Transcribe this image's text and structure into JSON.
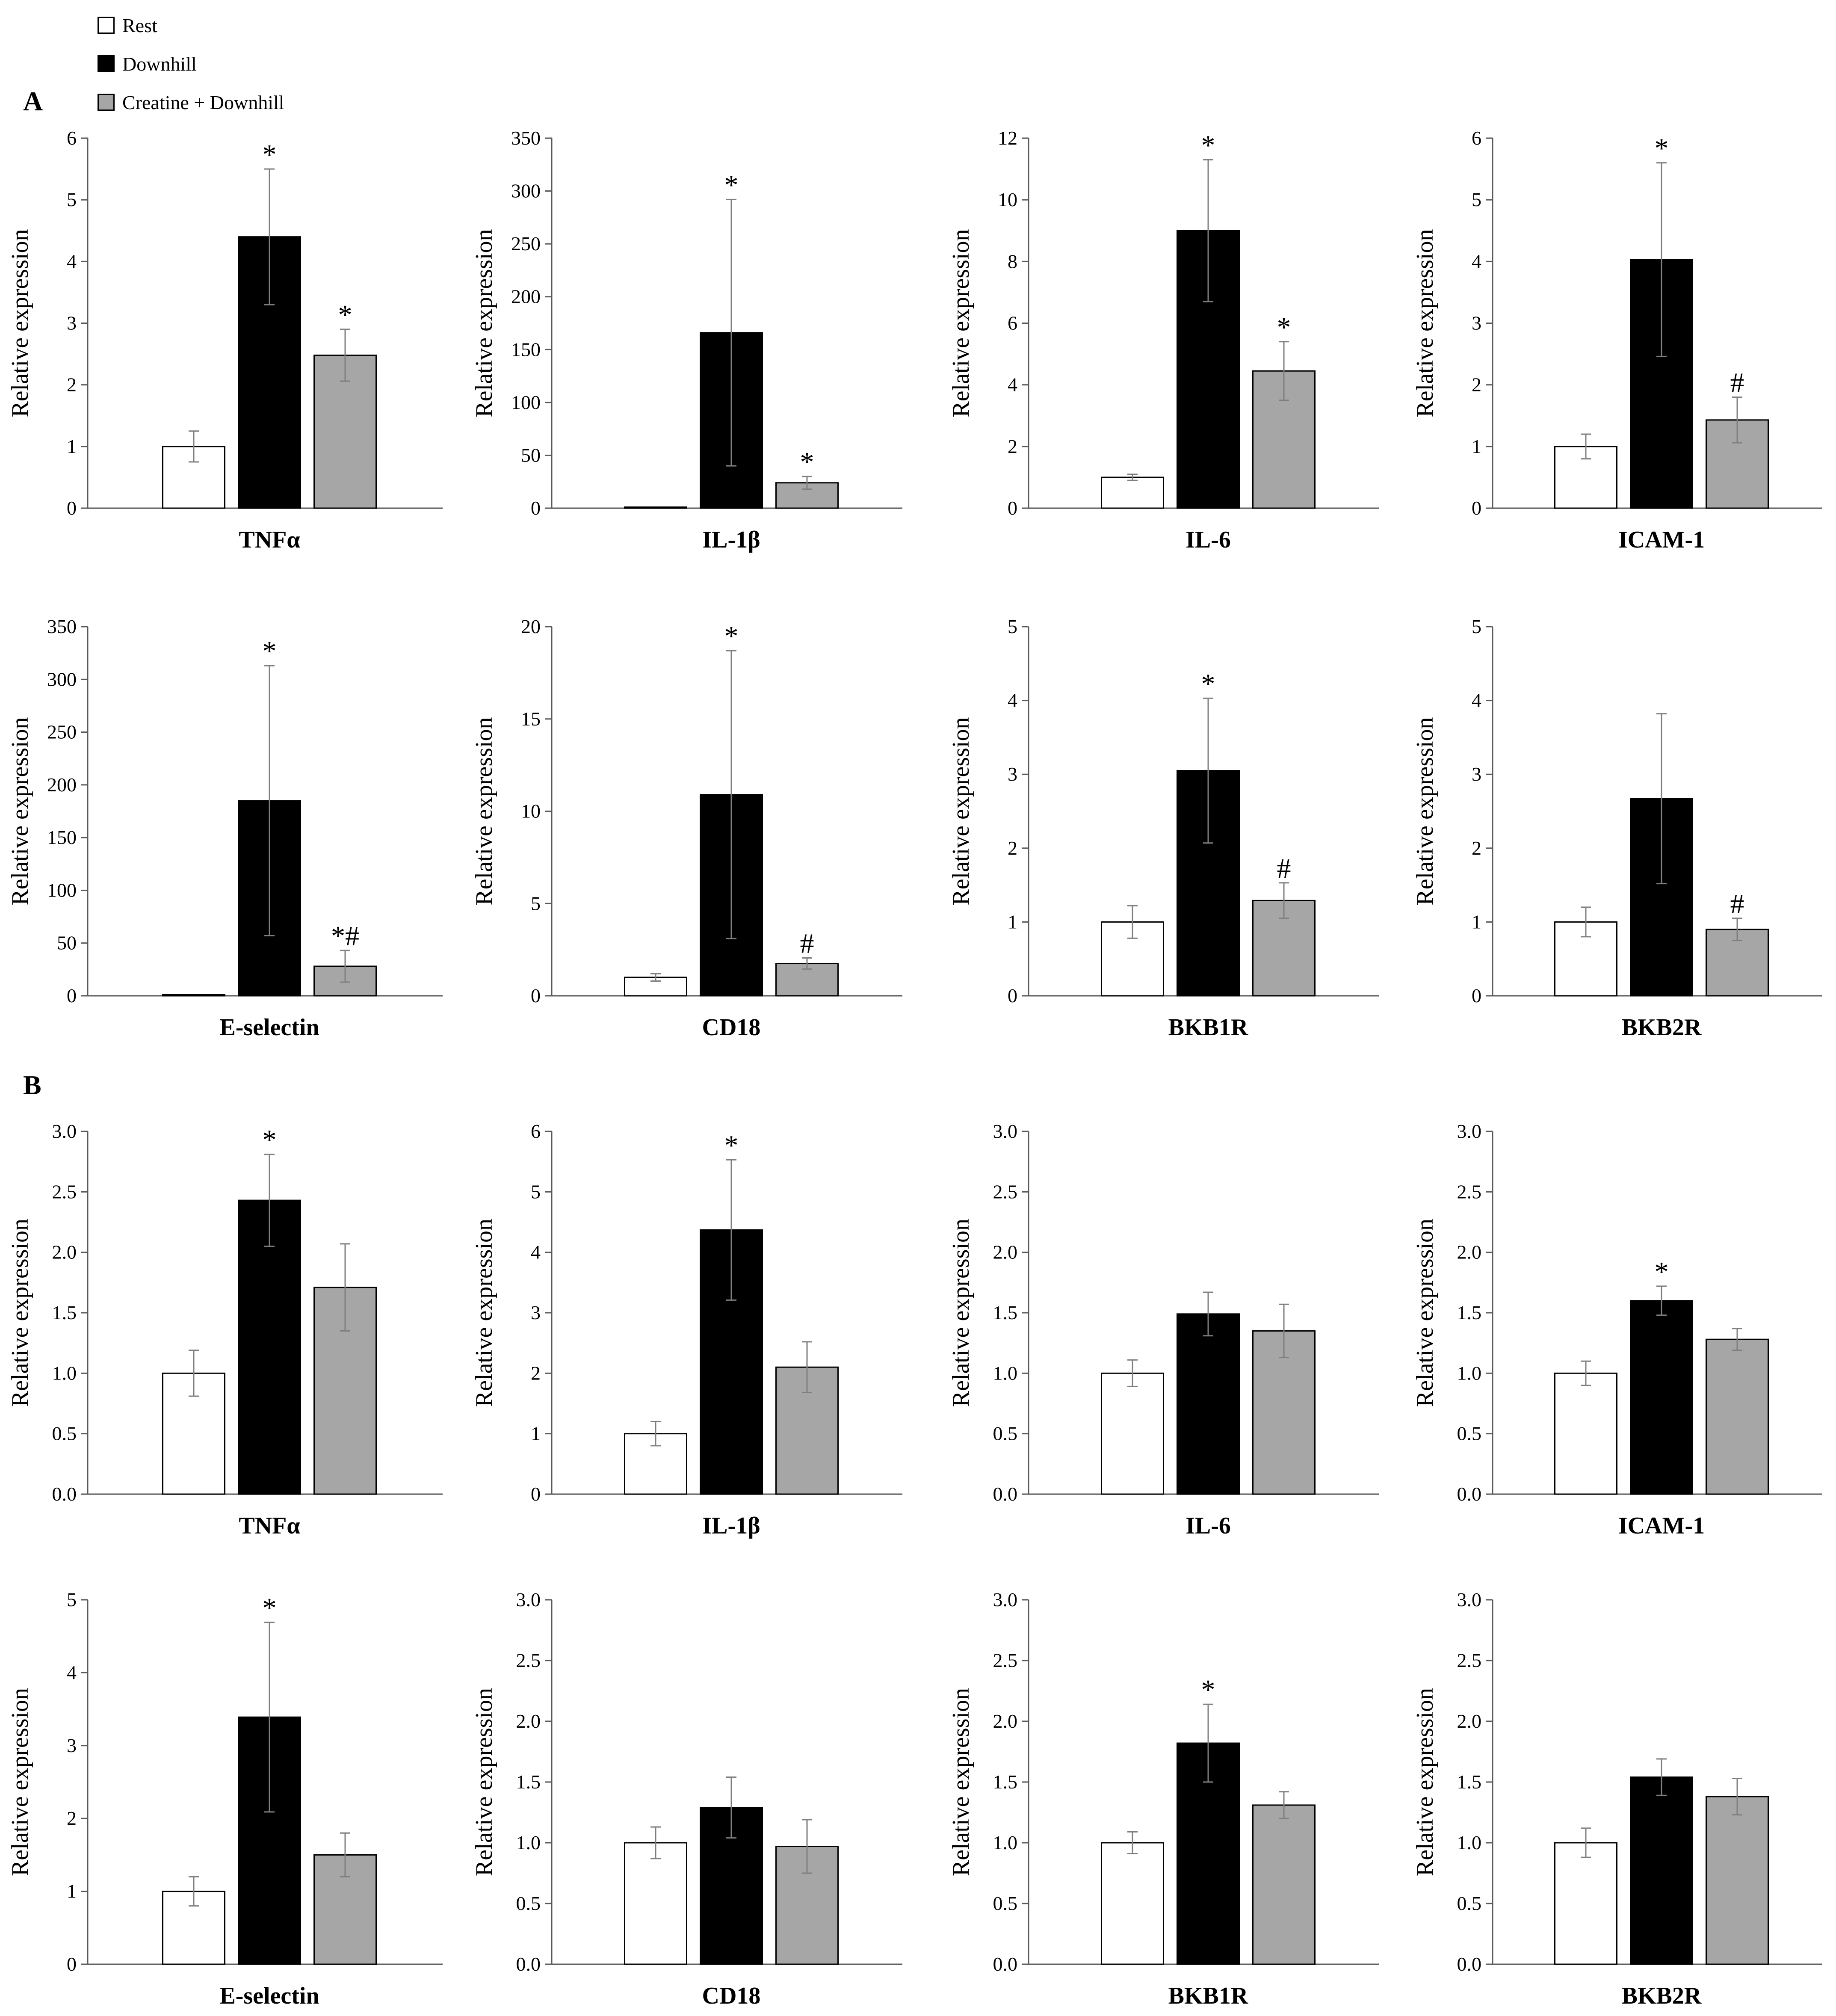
{
  "legend": {
    "items": [
      {
        "label": "Rest",
        "color": "#ffffff"
      },
      {
        "label": "Downhill",
        "color": "#000000"
      },
      {
        "label": "Creatine + Downhill",
        "color": "#a6a6a6"
      }
    ]
  },
  "panels": {
    "a_label": "A",
    "b_label": "B"
  },
  "colors": {
    "rest": "#ffffff",
    "downhill": "#000000",
    "creatine": "#a6a6a6",
    "axis": "#595959",
    "error": "#7f7f7f"
  },
  "chart_data": [
    {
      "id": "A-TNFa",
      "type": "bar",
      "panel": "A",
      "xlabel": "TNFα",
      "ylabel": "Relative expression",
      "ylim": [
        0,
        6
      ],
      "ticks": [
        "0",
        "1",
        "2",
        "3",
        "4",
        "5",
        "6"
      ],
      "series": [
        {
          "name": "Rest",
          "value": 1.0,
          "error": 0.25,
          "annot": ""
        },
        {
          "name": "Downhill",
          "value": 4.4,
          "error": 1.1,
          "annot": "*"
        },
        {
          "name": "Creatine + Downhill",
          "value": 2.48,
          "error": 0.42,
          "annot": "*"
        }
      ]
    },
    {
      "id": "A-IL1b",
      "type": "bar",
      "panel": "A",
      "xlabel": "IL-1β",
      "ylabel": "Relative expression",
      "ylim": [
        0,
        350
      ],
      "ticks": [
        "0",
        "50",
        "100",
        "150",
        "200",
        "250",
        "300",
        "350"
      ],
      "series": [
        {
          "name": "Rest",
          "value": 1,
          "error": 0,
          "annot": ""
        },
        {
          "name": "Downhill",
          "value": 166,
          "error": 126,
          "annot": "*"
        },
        {
          "name": "Creatine + Downhill",
          "value": 24,
          "error": 6,
          "annot": "*"
        }
      ]
    },
    {
      "id": "A-IL6",
      "type": "bar",
      "panel": "A",
      "xlabel": "IL-6",
      "ylabel": "Relative expression",
      "ylim": [
        0,
        12
      ],
      "ticks": [
        "0",
        "2",
        "4",
        "6",
        "8",
        "10",
        "12"
      ],
      "series": [
        {
          "name": "Rest",
          "value": 1.0,
          "error": 0.1,
          "annot": ""
        },
        {
          "name": "Downhill",
          "value": 9.0,
          "error": 2.3,
          "annot": "*"
        },
        {
          "name": "Creatine + Downhill",
          "value": 4.45,
          "error": 0.95,
          "annot": "*"
        }
      ]
    },
    {
      "id": "A-ICAM1",
      "type": "bar",
      "panel": "A",
      "xlabel": "ICAM-1",
      "ylabel": "Relative expression",
      "ylim": [
        0,
        6
      ],
      "ticks": [
        "0",
        "1",
        "2",
        "3",
        "4",
        "5",
        "6"
      ],
      "series": [
        {
          "name": "Rest",
          "value": 1.0,
          "error": 0.2,
          "annot": ""
        },
        {
          "name": "Downhill",
          "value": 4.03,
          "error": 1.57,
          "annot": "*"
        },
        {
          "name": "Creatine + Downhill",
          "value": 1.43,
          "error": 0.37,
          "annot": "#"
        }
      ]
    },
    {
      "id": "A-Esel",
      "type": "bar",
      "panel": "A",
      "xlabel": "E-selectin",
      "ylabel": "Relative expression",
      "ylim": [
        0,
        350
      ],
      "ticks": [
        "0",
        "50",
        "100",
        "150",
        "200",
        "250",
        "300",
        "350"
      ],
      "series": [
        {
          "name": "Rest",
          "value": 1,
          "error": 0,
          "annot": ""
        },
        {
          "name": "Downhill",
          "value": 185,
          "error": 128,
          "annot": "*"
        },
        {
          "name": "Creatine + Downhill",
          "value": 28,
          "error": 15,
          "annot": "*#"
        }
      ]
    },
    {
      "id": "A-CD18",
      "type": "bar",
      "panel": "A",
      "xlabel": "CD18",
      "ylabel": "Relative expression",
      "ylim": [
        0,
        20
      ],
      "ticks": [
        "0",
        "5",
        "10",
        "15",
        "20"
      ],
      "series": [
        {
          "name": "Rest",
          "value": 1.0,
          "error": 0.2,
          "annot": ""
        },
        {
          "name": "Downhill",
          "value": 10.9,
          "error": 7.8,
          "annot": "*"
        },
        {
          "name": "Creatine + Downhill",
          "value": 1.75,
          "error": 0.3,
          "annot": "#"
        }
      ]
    },
    {
      "id": "A-BKB1R",
      "type": "bar",
      "panel": "A",
      "xlabel": "BKB1R",
      "ylabel": "Relative expression",
      "ylim": [
        0,
        5
      ],
      "ticks": [
        "0",
        "1",
        "2",
        "3",
        "4",
        "5"
      ],
      "series": [
        {
          "name": "Rest",
          "value": 1.0,
          "error": 0.22,
          "annot": ""
        },
        {
          "name": "Downhill",
          "value": 3.05,
          "error": 0.98,
          "annot": "*"
        },
        {
          "name": "Creatine + Downhill",
          "value": 1.29,
          "error": 0.24,
          "annot": "#"
        }
      ]
    },
    {
      "id": "A-BKB2R",
      "type": "bar",
      "panel": "A",
      "xlabel": "BKB2R",
      "ylabel": "Relative expression",
      "ylim": [
        0,
        5
      ],
      "ticks": [
        "0",
        "1",
        "2",
        "3",
        "4",
        "5"
      ],
      "series": [
        {
          "name": "Rest",
          "value": 1.0,
          "error": 0.2,
          "annot": ""
        },
        {
          "name": "Downhill",
          "value": 2.67,
          "error": 1.15,
          "annot": ""
        },
        {
          "name": "Creatine + Downhill",
          "value": 0.9,
          "error": 0.15,
          "annot": "#"
        }
      ]
    },
    {
      "id": "B-TNFa",
      "type": "bar",
      "panel": "B",
      "xlabel": "TNFα",
      "ylabel": "Relative expression",
      "ylim": [
        0,
        3
      ],
      "ticks": [
        "0.0",
        "0.5",
        "1.0",
        "1.5",
        "2.0",
        "2.5",
        "3.0"
      ],
      "series": [
        {
          "name": "Rest",
          "value": 1.0,
          "error": 0.19,
          "annot": ""
        },
        {
          "name": "Downhill",
          "value": 2.43,
          "error": 0.38,
          "annot": "*"
        },
        {
          "name": "Creatine + Downhill",
          "value": 1.71,
          "error": 0.36,
          "annot": ""
        }
      ]
    },
    {
      "id": "B-IL1b",
      "type": "bar",
      "panel": "B",
      "xlabel": "IL-1β",
      "ylabel": "Relative expression",
      "ylim": [
        0,
        6
      ],
      "ticks": [
        "0",
        "1",
        "2",
        "3",
        "4",
        "5",
        "6"
      ],
      "series": [
        {
          "name": "Rest",
          "value": 1.0,
          "error": 0.2,
          "annot": ""
        },
        {
          "name": "Downhill",
          "value": 4.37,
          "error": 1.16,
          "annot": "*"
        },
        {
          "name": "Creatine + Downhill",
          "value": 2.1,
          "error": 0.42,
          "annot": ""
        }
      ]
    },
    {
      "id": "B-IL6",
      "type": "bar",
      "panel": "B",
      "xlabel": "IL-6",
      "ylabel": "Relative expression",
      "ylim": [
        0,
        3
      ],
      "ticks": [
        "0.0",
        "0.5",
        "1.0",
        "1.5",
        "2.0",
        "2.5",
        "3.0"
      ],
      "series": [
        {
          "name": "Rest",
          "value": 1.0,
          "error": 0.11,
          "annot": ""
        },
        {
          "name": "Downhill",
          "value": 1.49,
          "error": 0.18,
          "annot": ""
        },
        {
          "name": "Creatine + Downhill",
          "value": 1.35,
          "error": 0.22,
          "annot": ""
        }
      ]
    },
    {
      "id": "B-ICAM1",
      "type": "bar",
      "panel": "B",
      "xlabel": "ICAM-1",
      "ylabel": "Relative expression",
      "ylim": [
        0,
        3
      ],
      "ticks": [
        "0.0",
        "0.5",
        "1.0",
        "1.5",
        "2.0",
        "2.5",
        "3.0"
      ],
      "series": [
        {
          "name": "Rest",
          "value": 1.0,
          "error": 0.1,
          "annot": ""
        },
        {
          "name": "Downhill",
          "value": 1.6,
          "error": 0.12,
          "annot": "*"
        },
        {
          "name": "Creatine + Downhill",
          "value": 1.28,
          "error": 0.09,
          "annot": ""
        }
      ]
    },
    {
      "id": "B-Esel",
      "type": "bar",
      "panel": "B",
      "xlabel": "E-selectin",
      "ylabel": "Relative expression",
      "ylim": [
        0,
        5
      ],
      "ticks": [
        "0",
        "1",
        "2",
        "3",
        "4",
        "5"
      ],
      "series": [
        {
          "name": "Rest",
          "value": 1.0,
          "error": 0.2,
          "annot": ""
        },
        {
          "name": "Downhill",
          "value": 3.39,
          "error": 1.3,
          "annot": "*"
        },
        {
          "name": "Creatine + Downhill",
          "value": 1.5,
          "error": 0.3,
          "annot": ""
        }
      ]
    },
    {
      "id": "B-CD18",
      "type": "bar",
      "panel": "B",
      "xlabel": "CD18",
      "ylabel": "Relative expression",
      "ylim": [
        0,
        3
      ],
      "ticks": [
        "0.0",
        "0.5",
        "1.0",
        "1.5",
        "2.0",
        "2.5",
        "3.0"
      ],
      "series": [
        {
          "name": "Rest",
          "value": 1.0,
          "error": 0.13,
          "annot": ""
        },
        {
          "name": "Downhill",
          "value": 1.29,
          "error": 0.25,
          "annot": ""
        },
        {
          "name": "Creatine + Downhill",
          "value": 0.97,
          "error": 0.22,
          "annot": ""
        }
      ]
    },
    {
      "id": "B-BKB1R",
      "type": "bar",
      "panel": "B",
      "xlabel": "BKB1R",
      "ylabel": "Relative expression",
      "ylim": [
        0,
        3
      ],
      "ticks": [
        "0.0",
        "0.5",
        "1.0",
        "1.5",
        "2.0",
        "2.5",
        "3.0"
      ],
      "series": [
        {
          "name": "Rest",
          "value": 1.0,
          "error": 0.09,
          "annot": ""
        },
        {
          "name": "Downhill",
          "value": 1.82,
          "error": 0.32,
          "annot": "*"
        },
        {
          "name": "Creatine + Downhill",
          "value": 1.31,
          "error": 0.11,
          "annot": ""
        }
      ]
    },
    {
      "id": "B-BKB2R",
      "type": "bar",
      "panel": "B",
      "xlabel": "BKB2R",
      "ylabel": "Relative expression",
      "ylim": [
        0,
        3
      ],
      "ticks": [
        "0.0",
        "0.5",
        "1.0",
        "1.5",
        "2.0",
        "2.5",
        "3.0"
      ],
      "series": [
        {
          "name": "Rest",
          "value": 1.0,
          "error": 0.12,
          "annot": ""
        },
        {
          "name": "Downhill",
          "value": 1.54,
          "error": 0.15,
          "annot": ""
        },
        {
          "name": "Creatine + Downhill",
          "value": 1.38,
          "error": 0.15,
          "annot": ""
        }
      ]
    }
  ]
}
